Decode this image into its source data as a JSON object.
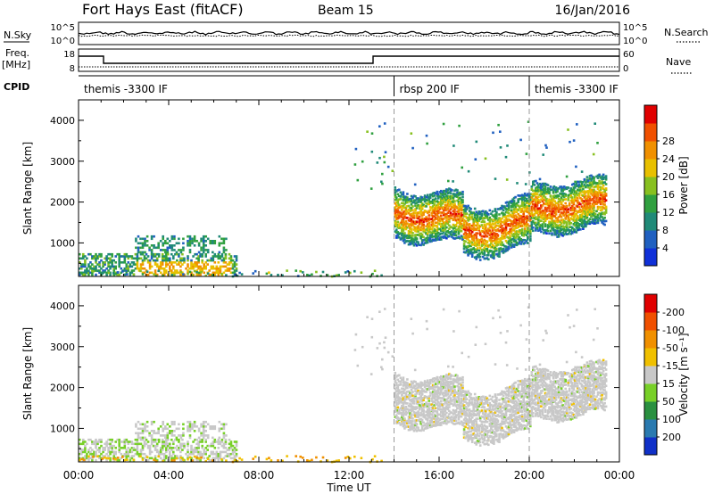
{
  "header": {
    "station": "Fort Hays East (fitACF)",
    "beam": "Beam 15",
    "date": "16/Jan/2016"
  },
  "strip_labels": {
    "nsky": "N.Sky",
    "nsearch": "N.Search",
    "freq_line1": "Freq.",
    "freq_line2": "[MHz]",
    "nave": "Nave",
    "cpid": "CPID"
  },
  "noise_axis": {
    "left_ticks": [
      "10^5",
      "10^0"
    ],
    "right_ticks": [
      "10^5",
      "10^0"
    ]
  },
  "freq_axis": {
    "left_ticks": [
      "18",
      "8"
    ],
    "right_ticks": [
      "60",
      "0"
    ]
  },
  "cpid_segments": [
    {
      "label": "themis -3300 IF",
      "start_hour": 0,
      "end_hour": 14
    },
    {
      "label": "rbsp 200 IF",
      "start_hour": 14,
      "end_hour": 20
    },
    {
      "label": "themis -3300 IF",
      "start_hour": 20,
      "end_hour": 24
    }
  ],
  "chart_data": [
    {
      "type": "heatmap",
      "quantity": "Power",
      "ylabel": "Slant Range [km]",
      "xlabel": "Time UT",
      "x_range_hours": [
        0,
        24
      ],
      "x_ticks": [
        "00:00",
        "04:00",
        "08:00",
        "12:00",
        "16:00",
        "20:00",
        "00:00"
      ],
      "y_range": [
        180,
        4500
      ],
      "y_ticks": [
        1000,
        2000,
        3000,
        4000
      ],
      "colorbar": {
        "label": "Power [dB]",
        "range": [
          0,
          32
        ],
        "ticks": [
          "4",
          "8",
          "12",
          "16",
          "20",
          "24",
          "28"
        ],
        "colors": [
          "#1030d8",
          "#2060c0",
          "#208a78",
          "#30a040",
          "#88c020",
          "#e8c000",
          "#f09000",
          "#f05000",
          "#e00000"
        ]
      },
      "scatter_regions": [
        {
          "t_start": 14.0,
          "t_end": 23.4,
          "range_center_km": 1900,
          "power_db": 26
        },
        {
          "t_start": 2.5,
          "t_end": 7.0,
          "range_center_km": 450,
          "power_db": 20
        },
        {
          "t_start": 2.5,
          "t_end": 6.5,
          "range_center_km": 1000,
          "power_db": 10
        },
        {
          "t_start": 0.0,
          "t_end": 13.0,
          "range_center_km": 300,
          "power_db": 8
        }
      ]
    },
    {
      "type": "heatmap",
      "quantity": "Velocity",
      "ylabel": "Slant Range [km]",
      "xlabel": "Time UT",
      "x_range_hours": [
        0,
        24
      ],
      "x_ticks": [
        "00:00",
        "04:00",
        "08:00",
        "12:00",
        "16:00",
        "20:00",
        "00:00"
      ],
      "y_range": [
        180,
        4500
      ],
      "y_ticks": [
        1000,
        2000,
        3000,
        4000
      ],
      "colorbar": {
        "label": "Velocity [m s⁻¹]",
        "ticks": [
          "200",
          "100",
          "50",
          "15",
          "-15",
          "-50",
          "-100",
          "-200"
        ],
        "colors": [
          "#1030c8",
          "#2a7ab0",
          "#2a9040",
          "#78d028",
          "#c8c8c8",
          "#f0c000",
          "#f09000",
          "#f05000",
          "#e00000"
        ]
      },
      "scatter_regions": [
        {
          "t_start": 14.0,
          "t_end": 23.4,
          "range_center_km": 1900,
          "velocity": 0
        },
        {
          "t_start": 0.0,
          "t_end": 6.5,
          "range_center_km": 700,
          "velocity": 40
        },
        {
          "t_start": 6.0,
          "t_end": 13.5,
          "range_center_km": 250,
          "velocity": -40
        }
      ]
    }
  ],
  "x_axis_label": "Time UT"
}
